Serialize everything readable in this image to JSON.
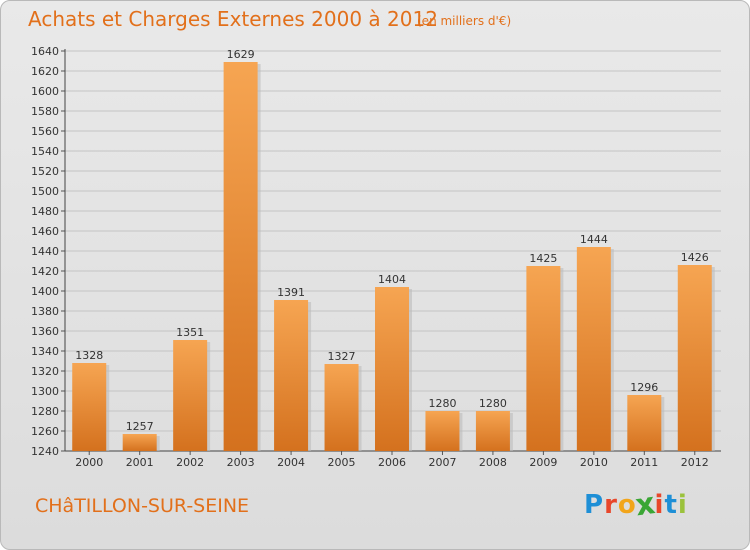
{
  "title": "Achats et Charges Externes 2000 à 2012",
  "subtitle": "(en milliers d'€)",
  "location": "CHâTILLON-SUR-SEINE",
  "brand": {
    "letters": [
      "P",
      "r",
      "o",
      "x",
      "i",
      "t",
      "i"
    ],
    "colors": [
      "#1e8fd6",
      "#e8462a",
      "#f2a51a",
      "#3aa635",
      "#e8462a",
      "#1e8fd6",
      "#9bc23c"
    ]
  },
  "colors": {
    "bar_light": "#f6a552",
    "bar_dark": "#d4711e",
    "text_accent": "#e2701b"
  },
  "chart_data": {
    "type": "bar",
    "categories": [
      "2000",
      "2001",
      "2002",
      "2003",
      "2004",
      "2005",
      "2006",
      "2007",
      "2008",
      "2009",
      "2010",
      "2011",
      "2012"
    ],
    "values": [
      1328,
      1257,
      1351,
      1629,
      1391,
      1327,
      1404,
      1280,
      1280,
      1425,
      1444,
      1296,
      1426
    ],
    "ylim": [
      1240,
      1640
    ],
    "ytick_step": 20,
    "grid": true
  }
}
